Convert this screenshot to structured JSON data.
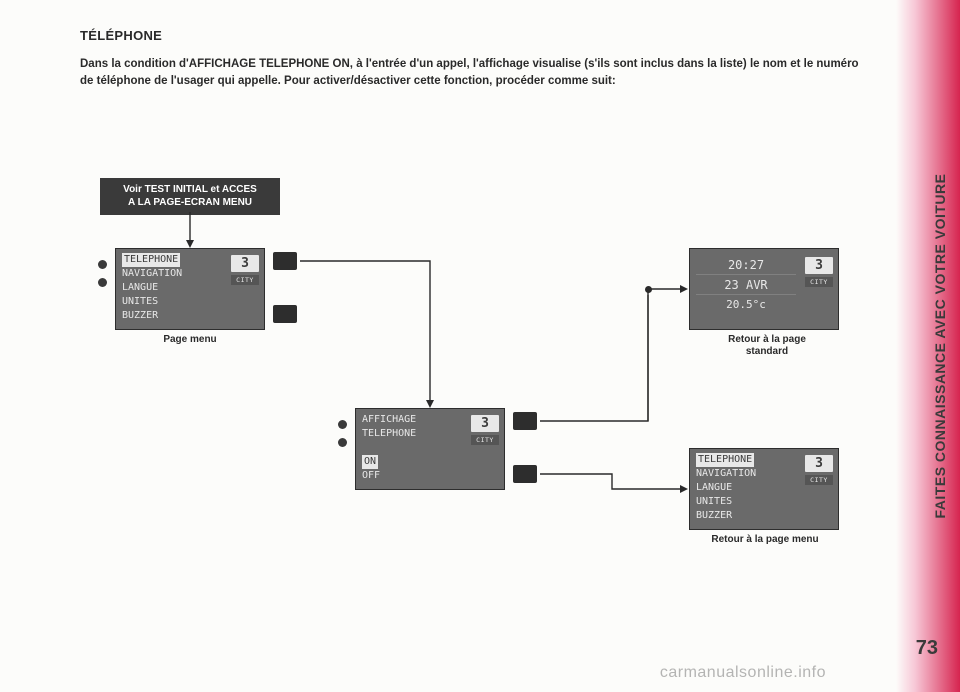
{
  "sidebar": {
    "label": "FAITES CONNAISSANCE AVEC VOTRE VOITURE"
  },
  "page_number": "73",
  "watermark": "carmanualsonline.info",
  "heading": "TÉLÉPHONE",
  "body": "Dans la condition d'AFFICHAGE TELEPHONE ON, à l'entrée d'un appel, l'affichage visualise (s'ils sont inclus dans la liste) le nom et le numéro de téléphone de l'usager qui appelle. Pour activer/désactiver cette fonction, procéder comme suit:",
  "callout1": {
    "line1": "Voir TEST INITIAL et ACCES",
    "line2": "A LA PAGE-ECRAN MENU"
  },
  "captions": {
    "menu": "Page menu",
    "std": [
      "Retour à la page",
      "standard"
    ],
    "back_menu": "Retour à la page menu"
  },
  "gear": "3",
  "city": "CITY",
  "lcd_menu": {
    "items": [
      "TELEPHONE",
      "NAVIGATION",
      "LANGUE",
      "UNITES",
      "BUZZER"
    ],
    "highlight_index": 0
  },
  "lcd_sub": {
    "top": [
      "AFFICHAGE",
      "TELEPHONE"
    ],
    "options": [
      "ON",
      "OFF"
    ],
    "highlight_index": 0
  },
  "lcd_std": {
    "time": "20:27",
    "date": "23 AVR",
    "temp": "20.5°c"
  },
  "lcd_back": {
    "items": [
      "TELEPHONE",
      "NAVIGATION",
      "LANGUE",
      "UNITES",
      "BUZZER"
    ],
    "highlight_index": 0
  }
}
